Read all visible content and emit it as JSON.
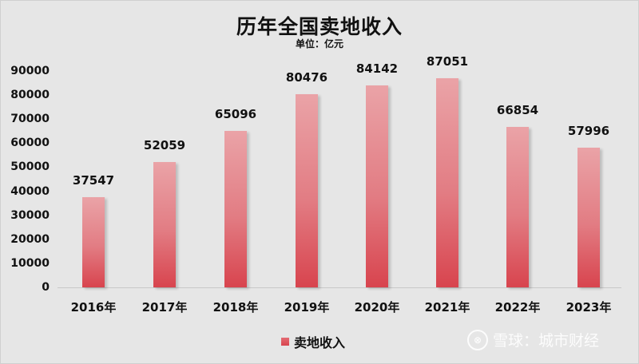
{
  "header": {
    "title": "历年全国卖地收入",
    "subtitle": "单位：亿元"
  },
  "legend": {
    "label": "卖地收入",
    "color": "#d8444e"
  },
  "watermark": {
    "logo": "⊗",
    "text": "雪球：城市财经"
  },
  "y_axis": {
    "ticks": [
      "0",
      "10000",
      "20000",
      "30000",
      "40000",
      "50000",
      "60000",
      "70000",
      "80000",
      "90000"
    ]
  },
  "chart_data": {
    "type": "bar",
    "title": "历年全国卖地收入",
    "subtitle": "单位：亿元",
    "xlabel": "",
    "ylabel": "亿元",
    "categories": [
      "2016年",
      "2017年",
      "2018年",
      "2019年",
      "2020年",
      "2021年",
      "2022年",
      "2023年"
    ],
    "series": [
      {
        "name": "卖地收入",
        "values": [
          37547,
          52059,
          65096,
          80476,
          84142,
          87051,
          66854,
          57996
        ]
      }
    ],
    "ylim": [
      0,
      90000
    ],
    "yticks": [
      0,
      10000,
      20000,
      30000,
      40000,
      50000,
      60000,
      70000,
      80000,
      90000
    ],
    "grid": false,
    "legend_position": "bottom",
    "data_labels": true
  }
}
